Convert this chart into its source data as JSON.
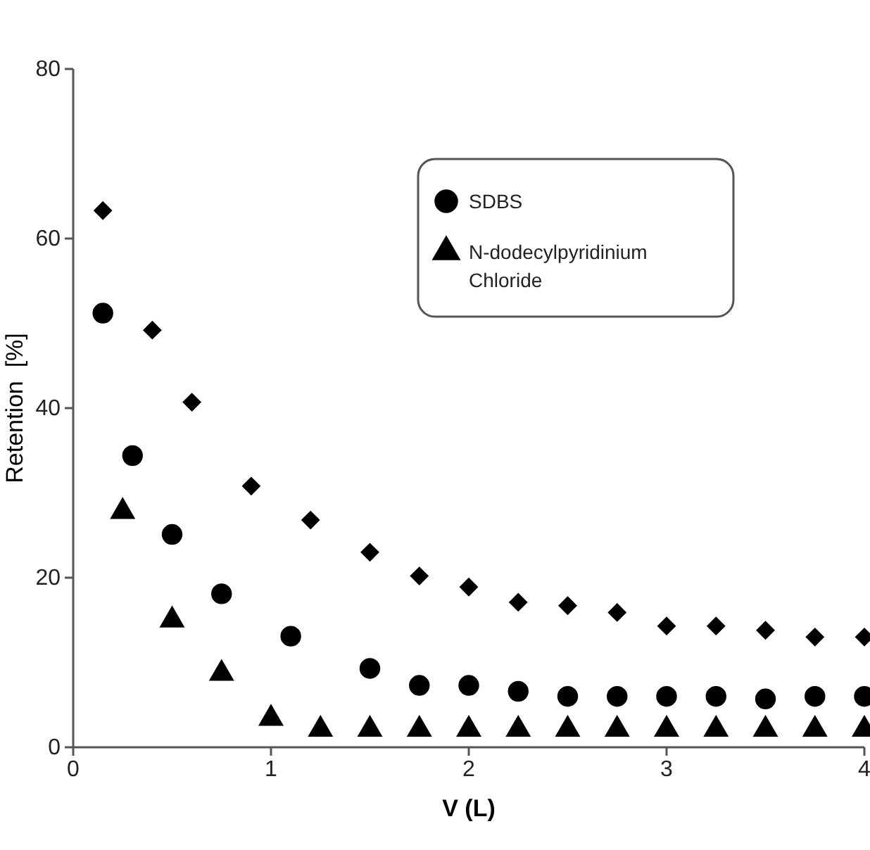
{
  "chart_data": {
    "type": "scatter",
    "xlabel": "V (L)",
    "ylabel": "Retention  [%]",
    "xlim": [
      0,
      4
    ],
    "xticks": [
      0,
      1,
      2,
      3,
      4
    ],
    "ylim": [
      0,
      80
    ],
    "yticks": [
      0,
      20,
      40,
      60,
      80
    ],
    "grid": false,
    "legend": "top right",
    "series": [
      {
        "color": "#000000",
        "marker": "diamond",
        "x": [
          0.15,
          0.4,
          0.6,
          0.9,
          1.2,
          1.5,
          1.75,
          2,
          2.25,
          2.5,
          2.75,
          3,
          3.25,
          3.5,
          3.75,
          4
        ],
        "values": [
          63.3,
          49.2,
          40.7,
          30.8,
          26.8,
          23.0,
          20.2,
          18.9,
          17.1,
          16.7,
          15.9,
          14.3,
          14.3,
          13.8,
          13.0,
          13.0
        ]
      },
      {
        "name": "SDBS",
        "color": "#000000",
        "marker": "circle",
        "x": [
          0.15,
          0.3,
          0.5,
          0.75,
          1.1,
          1.5,
          1.75,
          2,
          2.25,
          2.5,
          2.75,
          3,
          3.25,
          3.5,
          3.75,
          4
        ],
        "values": [
          51.2,
          34.4,
          25.1,
          18.1,
          13.1,
          9.3,
          7.3,
          7.3,
          6.6,
          6.0,
          6.0,
          6.0,
          6.0,
          5.7,
          6.0,
          6.0
        ]
      },
      {
        "name": "N-dodecylpyridinium Chloride",
        "color": "#000000",
        "marker": "triangle",
        "x": [
          0.25,
          0.5,
          0.75,
          1,
          1.25,
          1.5,
          1.75,
          2,
          2.25,
          2.5,
          2.75,
          3,
          3.25,
          3.5,
          3.75,
          4
        ],
        "values": [
          27.8,
          15.0,
          8.7,
          3.4,
          2.1,
          2.1,
          2.1,
          2.1,
          2.1,
          2.1,
          2.1,
          2.1,
          2.1,
          2.1,
          2.1,
          2.1
        ]
      }
    ]
  }
}
